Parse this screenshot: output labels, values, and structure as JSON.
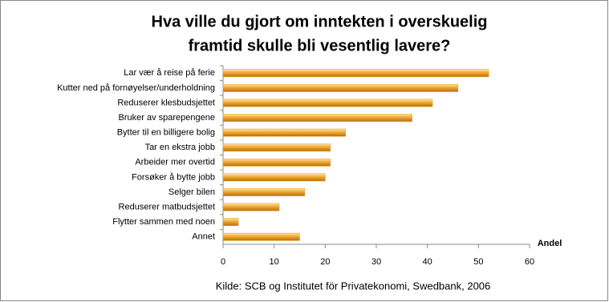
{
  "chart_data": {
    "type": "bar",
    "orientation": "horizontal",
    "title": [
      "Hva ville du gjort om inntekten i overskuelig",
      "framtid skulle bli vesentlig lavere?"
    ],
    "categories": [
      "Lar vær å reise på ferie",
      "Kutter ned på fornøyelser/underholdning",
      "Reduserer klesbudsjettet",
      "Bruker av sparepengene",
      "Bytter til en billigere bolig",
      "Tar en ekstra jobb",
      "Arbeider mer overtid",
      "Forsøker å bytte jobb",
      "Selger bilen",
      "Reduserer matbudsjettet",
      "Flytter sammen  med noen",
      "Annet"
    ],
    "values": [
      52,
      46,
      41,
      37,
      24,
      21,
      21,
      20,
      16,
      11,
      3,
      15
    ],
    "color": "#e8a020",
    "xlabel": "Andel",
    "xlim": [
      0,
      60
    ],
    "xticks": [
      0,
      10,
      20,
      30,
      40,
      50,
      60
    ],
    "grid": false,
    "source": "Kilde: SCB og Institutet för Privatekonomi, Swedbank, 2006"
  }
}
